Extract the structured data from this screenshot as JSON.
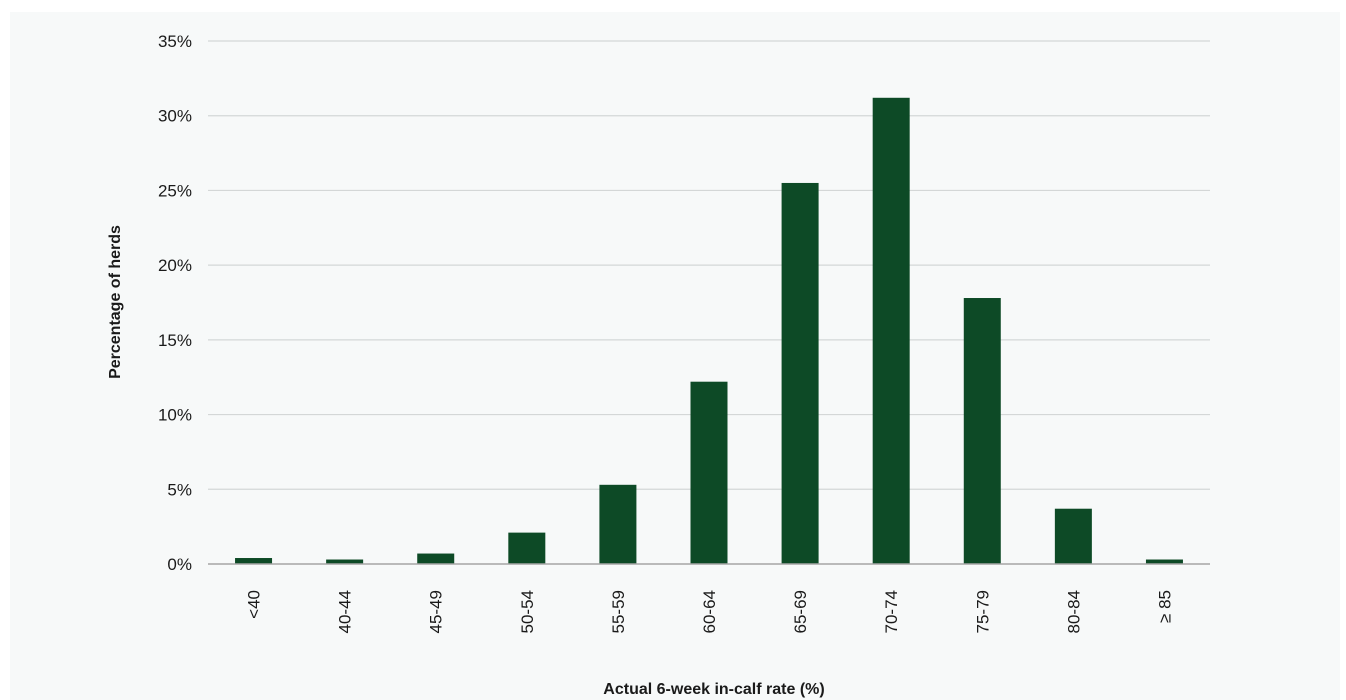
{
  "chart_data": {
    "type": "bar",
    "title": "",
    "xlabel": "Actual 6-week in-calf rate (%)",
    "ylabel": "Percentage of herds",
    "categories": [
      "<40",
      "40-44",
      "45-49",
      "50-54",
      "55-59",
      "60-64",
      "65-69",
      "70-74",
      "75-79",
      "80-84",
      "≥ 85"
    ],
    "values": [
      0.4,
      0.3,
      0.7,
      2.1,
      5.3,
      12.2,
      25.5,
      31.2,
      17.8,
      3.7,
      0.3
    ],
    "ylim": [
      0,
      35
    ],
    "yticks": [
      0,
      5,
      10,
      15,
      20,
      25,
      30,
      35
    ],
    "ytick_labels": [
      "0%",
      "5%",
      "10%",
      "15%",
      "20%",
      "25%",
      "30%",
      "35%"
    ],
    "grid": true,
    "legend": "none",
    "bar_color": "#0d4a26",
    "grid_color": "#d4d7d7",
    "axis_color": "#a6a6a6"
  }
}
